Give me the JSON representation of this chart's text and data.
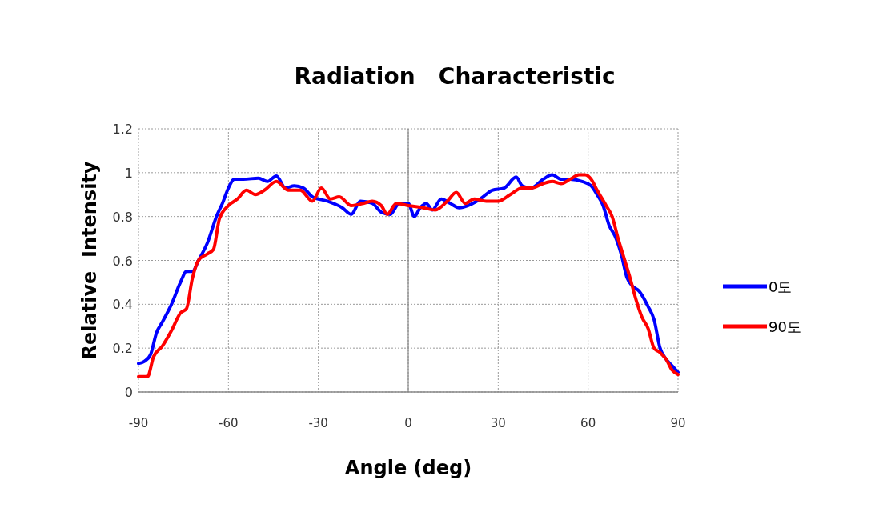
{
  "chart_data": {
    "type": "line",
    "title": "Radiation   Characteristic",
    "xlabel": "Angle (deg)",
    "ylabel": "Relative  Intensity",
    "xlim": [
      -90,
      90
    ],
    "xticks": [
      -90,
      -60,
      -30,
      0,
      30,
      60,
      90
    ],
    "ylim": [
      0,
      1.2
    ],
    "yticks": [
      0,
      0.2,
      0.4,
      0.6,
      0.8,
      1,
      1.2
    ],
    "grid": true,
    "legend": "right",
    "line_style": "solid",
    "marker": "none",
    "series": [
      {
        "name": "0도",
        "color": "#0000ff",
        "x": [
          -90,
          -88,
          -86,
          -84,
          -82,
          -79,
          -76,
          -74,
          -72,
          -70,
          -67,
          -64,
          -62,
          -60,
          -58,
          -55,
          -50,
          -47,
          -44,
          -41,
          -38,
          -35,
          -32,
          -27,
          -22,
          -19,
          -16,
          -12,
          -9,
          -6,
          -3,
          0,
          2,
          4,
          6,
          8,
          11,
          14,
          17,
          20,
          24,
          28,
          32,
          36,
          38,
          41,
          45,
          48,
          51,
          54,
          58,
          61,
          63,
          65,
          67,
          69,
          71,
          73,
          75,
          77,
          80,
          82,
          84,
          86,
          88,
          90
        ],
        "values": [
          0.13,
          0.14,
          0.17,
          0.27,
          0.32,
          0.4,
          0.5,
          0.55,
          0.55,
          0.6,
          0.68,
          0.8,
          0.86,
          0.93,
          0.97,
          0.97,
          0.975,
          0.96,
          0.985,
          0.93,
          0.94,
          0.93,
          0.89,
          0.87,
          0.84,
          0.81,
          0.87,
          0.86,
          0.82,
          0.81,
          0.86,
          0.86,
          0.8,
          0.84,
          0.86,
          0.83,
          0.88,
          0.86,
          0.84,
          0.85,
          0.88,
          0.92,
          0.93,
          0.98,
          0.94,
          0.93,
          0.97,
          0.99,
          0.97,
          0.97,
          0.96,
          0.94,
          0.9,
          0.85,
          0.76,
          0.71,
          0.63,
          0.52,
          0.48,
          0.46,
          0.39,
          0.33,
          0.2,
          0.15,
          0.12,
          0.09
        ]
      },
      {
        "name": "90도",
        "color": "#ff0000",
        "x": [
          -90,
          -87,
          -85,
          -82,
          -79,
          -76,
          -74,
          -72,
          -70,
          -67,
          -65,
          -63,
          -60,
          -57,
          -54,
          -51,
          -48,
          -44,
          -40,
          -36,
          -32,
          -29,
          -26,
          -23,
          -19,
          -15,
          -12,
          -9,
          -7,
          -4,
          0,
          5,
          9,
          13,
          16,
          19,
          22,
          26,
          30,
          34,
          38,
          41,
          45,
          48,
          51,
          54,
          57,
          59,
          61,
          63,
          66,
          68,
          70,
          72,
          74,
          76,
          78,
          80,
          82,
          84,
          86,
          88,
          90
        ],
        "values": [
          0.07,
          0.07,
          0.16,
          0.21,
          0.28,
          0.36,
          0.38,
          0.52,
          0.6,
          0.63,
          0.65,
          0.79,
          0.85,
          0.88,
          0.92,
          0.9,
          0.92,
          0.96,
          0.92,
          0.92,
          0.87,
          0.93,
          0.88,
          0.89,
          0.85,
          0.86,
          0.87,
          0.85,
          0.81,
          0.86,
          0.85,
          0.84,
          0.83,
          0.87,
          0.91,
          0.86,
          0.88,
          0.87,
          0.87,
          0.9,
          0.93,
          0.93,
          0.95,
          0.96,
          0.95,
          0.97,
          0.99,
          0.99,
          0.97,
          0.92,
          0.85,
          0.8,
          0.7,
          0.61,
          0.52,
          0.42,
          0.34,
          0.29,
          0.2,
          0.18,
          0.15,
          0.1,
          0.08
        ]
      }
    ]
  }
}
